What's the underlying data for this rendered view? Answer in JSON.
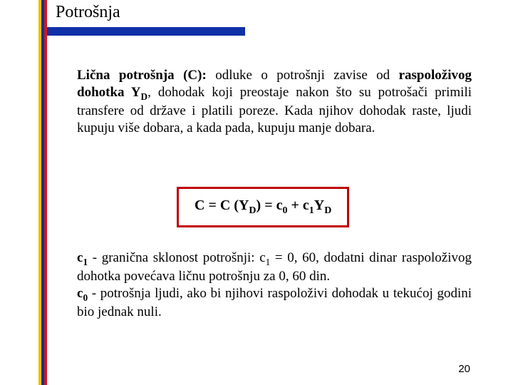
{
  "title": "Potrošnja",
  "para1": {
    "lead_bold": "Lična potrošnja (C):",
    "mid1": " odluke o potrošnji zavise od ",
    "key_bold": "raspoloživog dohotka Y",
    "key_sub": "D",
    "mid2": ", dohodak koji preostaje nakon što su potrošači primili transfere od države i platili poreze. Kada njihov dohodak raste, ljudi kupuju više dobara, a kada pada, kupuju manje dobara."
  },
  "formula": {
    "lhs": "C",
    "eq1": " = ",
    "f1a": "C (Y",
    "f1sub": "D",
    "f1b": ")",
    "eq2": "  =  ",
    "c0": "c",
    "c0sub": "0",
    "plus": " + ",
    "c1": "c",
    "c1sub": "1",
    "yd": "Y",
    "ydsub": "D"
  },
  "para2": {
    "c1": "c",
    "c1sub": "1",
    "t1": " - granična sklonost potrošnji: ",
    "c1b": "c",
    "c1bsub": "1",
    "t2": " = 0, 60, dodatni dinar raspoloživog dohotka povećava ličnu potrošnju za 0, 60 din.",
    "c0": "c",
    "c0sub": "0",
    "t3": " - potrošnja ljudi, ako bi njihovi raspoloživi dohodak u tekućoj godini bio jednak nuli."
  },
  "page": "20",
  "colors": {
    "accent_blue": "#1030a8",
    "accent_yellow": "#f0c000",
    "accent_red": "#d01818",
    "formula_border": "#c00000"
  }
}
